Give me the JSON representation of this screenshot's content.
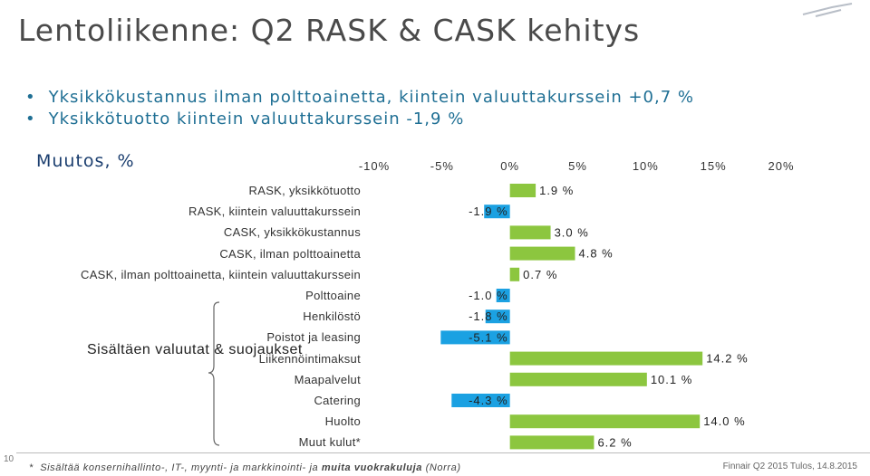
{
  "title": "Lentoliikenne: Q2 RASK & CASK kehitys",
  "bullets": [
    "Yksikkökustannus ilman polttoainetta, kiintein valuuttakurssein +0,7 %",
    "Yksikkötuotto kiintein valuuttakurssein -1,9 %"
  ],
  "chart_header": "Muutos, %",
  "group_label": "Sisältäen valuutat & suojaukset",
  "footnote": {
    "marker": "*",
    "text_before": "Sisältää konsernihallinto-, IT-, myynti- ja markkinointi- ja ",
    "text_bold": "muita vuokrakuluja",
    "text_after": " (Norra)"
  },
  "footer": "Finnair Q2 2015 Tulos, 14.8.2015",
  "page_number": "10",
  "colors": {
    "increase": "#8cc63f",
    "decrease": "#1ba1e2",
    "title": "#4a4a4a",
    "bullets": "#1f6f94",
    "header": "#1a3d6e"
  },
  "chart_data": {
    "type": "bar",
    "orientation": "horizontal",
    "xlim": [
      -10,
      20
    ],
    "xticks": [
      "-10%",
      "-5%",
      "0%",
      "5%",
      "10%",
      "15%",
      "20%"
    ],
    "grid": false,
    "categories": [
      "RASK, yksikkötuotto",
      "RASK, kiintein valuuttakurssein",
      "CASK, yksikkökustannus",
      "CASK, ilman polttoainetta",
      "CASK, ilman polttoainetta, kiintein valuuttakurssein",
      "Polttoaine",
      "Henkilöstö",
      "Poistot ja leasing",
      "Liikennöintimaksut",
      "Maapalvelut",
      "Catering",
      "Huolto",
      "Muut kulut*"
    ],
    "values": [
      1.9,
      -1.9,
      3.0,
      4.8,
      0.7,
      -1.0,
      -1.8,
      -5.1,
      14.2,
      10.1,
      -4.3,
      14.0,
      6.2
    ],
    "labels": [
      "1.9 %",
      "-1.9 %",
      "3.0 %",
      "4.8 %",
      "0.7 %",
      "-1.0 %",
      "-1.8 %",
      "-5.1 %",
      "14.2 %",
      "10.1 %",
      "-4.3 %",
      "14.0 %",
      "6.2 %"
    ]
  }
}
